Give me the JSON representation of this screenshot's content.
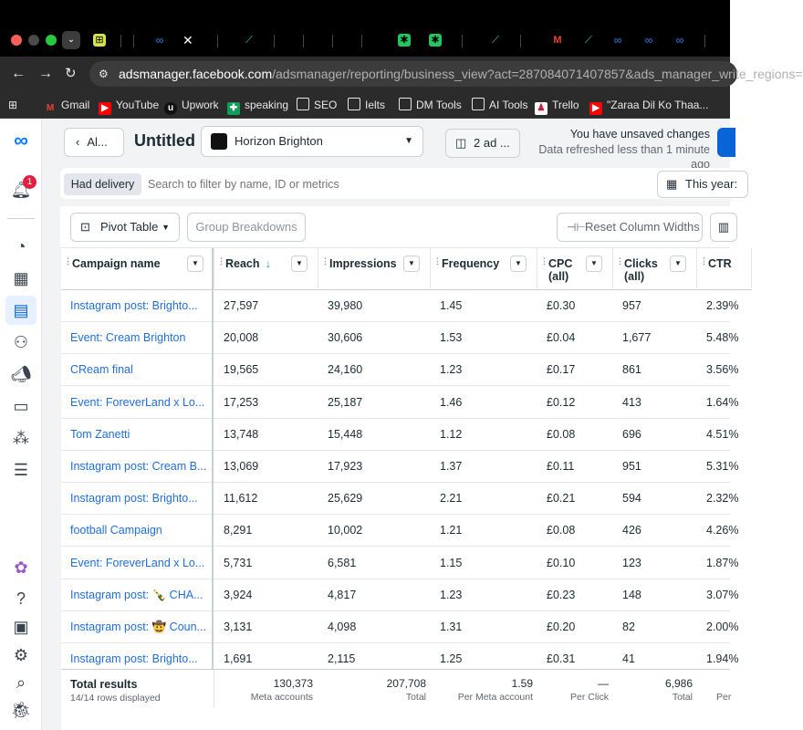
{
  "browser": {
    "url_host": "adsmanager.facebook.com",
    "url_rest": "/adsmanager/reporting/business_view?act=287084071407857&ads_manager_write_regions=",
    "bookmarks": [
      {
        "label": "Gmail",
        "icon": "gmail-icon"
      },
      {
        "label": "YouTube",
        "icon": "youtube-icon"
      },
      {
        "label": "Upwork",
        "icon": "upwork-icon"
      },
      {
        "label": "speaking",
        "icon": "sheets-icon"
      },
      {
        "label": "SEO",
        "icon": "folder-icon"
      },
      {
        "label": "Ielts",
        "icon": "folder-icon"
      },
      {
        "label": "DM Tools",
        "icon": "folder-icon"
      },
      {
        "label": "AI Tools",
        "icon": "folder-icon"
      },
      {
        "label": "Trello",
        "icon": "trello-icon"
      },
      {
        "label": "\"Zaraa Dil Ko Thaa...",
        "icon": "youtube-icon"
      }
    ]
  },
  "header": {
    "back_label": "Al...",
    "title": "Untitled",
    "account_name": "Horizon Brighton",
    "ad_count_label": "2 ad ...",
    "unsaved_text": "You have unsaved changes",
    "refreshed_text": "Data refreshed less than 1 minute ago",
    "notification_count": "1"
  },
  "filters": {
    "chip_label": "Had delivery",
    "search_placeholder": "Search to filter by name, ID or metrics",
    "date_label": "This year:"
  },
  "toolbar": {
    "pivot_label": "Pivot Table",
    "group_label": "Group Breakdowns",
    "reset_label": "Reset Column Widths"
  },
  "columns": [
    {
      "label": "Campaign name"
    },
    {
      "label": "Reach"
    },
    {
      "label": "Impressions"
    },
    {
      "label": "Frequency"
    },
    {
      "label": "CPC",
      "label2": "(all)"
    },
    {
      "label": "Clicks",
      "label2": "(all)"
    },
    {
      "label": "CTR"
    }
  ],
  "rows": [
    {
      "name": "Instagram post: Brighto...",
      "reach": "27,597",
      "impressions": "39,980",
      "frequency": "1.45",
      "cpc": "£0.30",
      "clicks": "957",
      "ctr": "2.39%"
    },
    {
      "name": "Event: Cream Brighton",
      "reach": "20,008",
      "impressions": "30,606",
      "frequency": "1.53",
      "cpc": "£0.04",
      "clicks": "1,677",
      "ctr": "5.48%"
    },
    {
      "name": "CReam final",
      "reach": "19,565",
      "impressions": "24,160",
      "frequency": "1.23",
      "cpc": "£0.17",
      "clicks": "861",
      "ctr": "3.56%"
    },
    {
      "name": "Event: ForeverLand x Lo...",
      "reach": "17,253",
      "impressions": "25,187",
      "frequency": "1.46",
      "cpc": "£0.12",
      "clicks": "413",
      "ctr": "1.64%"
    },
    {
      "name": "Tom Zanetti",
      "reach": "13,748",
      "impressions": "15,448",
      "frequency": "1.12",
      "cpc": "£0.08",
      "clicks": "696",
      "ctr": "4.51%"
    },
    {
      "name": "Instagram post: Cream B...",
      "reach": "13,069",
      "impressions": "17,923",
      "frequency": "1.37",
      "cpc": "£0.11",
      "clicks": "951",
      "ctr": "5.31%"
    },
    {
      "name": "Instagram post: Brighto...",
      "reach": "11,612",
      "impressions": "25,629",
      "frequency": "2.21",
      "cpc": "£0.21",
      "clicks": "594",
      "ctr": "2.32%"
    },
    {
      "name": "football Campaign",
      "reach": "8,291",
      "impressions": "10,002",
      "frequency": "1.21",
      "cpc": "£0.08",
      "clicks": "426",
      "ctr": "4.26%"
    },
    {
      "name": "Event: ForeverLand x Lo...",
      "reach": "5,731",
      "impressions": "6,581",
      "frequency": "1.15",
      "cpc": "£0.10",
      "clicks": "123",
      "ctr": "1.87%"
    },
    {
      "name": "Instagram post: 🍾 CHA...",
      "reach": "3,924",
      "impressions": "4,817",
      "frequency": "1.23",
      "cpc": "£0.23",
      "clicks": "148",
      "ctr": "3.07%"
    },
    {
      "name": "Instagram post: 🤠 Coun...",
      "reach": "3,131",
      "impressions": "4,098",
      "frequency": "1.31",
      "cpc": "£0.20",
      "clicks": "82",
      "ctr": "2.00%"
    },
    {
      "name": "Instagram post: Brighto...",
      "reach": "1,691",
      "impressions": "2,115",
      "frequency": "1.25",
      "cpc": "£0.31",
      "clicks": "41",
      "ctr": "1.94%"
    }
  ],
  "totals": {
    "label": "Total results",
    "sub": "14/14 rows displayed",
    "reach": "130,373",
    "reach_sub": "Meta accounts",
    "impressions": "207,708",
    "impressions_sub": "Total",
    "frequency": "1.59",
    "frequency_sub": "Per Meta account",
    "cpc": "—",
    "cpc_sub": "Per Click",
    "clicks": "6,986",
    "clicks_sub": "Total",
    "ctr_sub": "Per"
  },
  "colors": {
    "link": "#216fdb",
    "meta_blue": "#0a7cff",
    "notification": "#e41e3f"
  }
}
